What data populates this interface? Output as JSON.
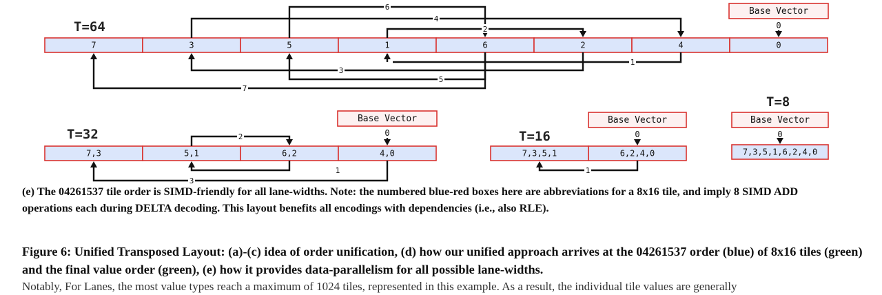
{
  "diagram": {
    "t64": {
      "label": "T=64",
      "cells": [
        "7",
        "3",
        "5",
        "1",
        "6",
        "2",
        "4",
        "0"
      ],
      "base_vector": "Base Vector",
      "zero": "0",
      "top_arrows": [
        {
          "label": "6",
          "from": 2,
          "to": 4
        },
        {
          "label": "4",
          "from": 1,
          "to": 6
        },
        {
          "label": "2",
          "from": 3,
          "to": 5
        }
      ],
      "bottom_arrows": [
        {
          "label": "1",
          "from": 6,
          "to": 3
        },
        {
          "label": "3",
          "from": 5,
          "to": 1
        },
        {
          "label": "5",
          "from": 4,
          "to": 2
        },
        {
          "label": "7",
          "from": 4,
          "to": 0
        }
      ]
    },
    "t32": {
      "label": "T=32",
      "cells": [
        "7,3",
        "5,1",
        "6,2",
        "4,0"
      ],
      "base_vector": "Base Vector",
      "zero": "0",
      "top_arrows": [
        {
          "label": "2",
          "from": 1,
          "to": 2
        }
      ],
      "bottom_arrows": [
        {
          "label": "1",
          "from": 2,
          "to": 1
        },
        {
          "label": "3",
          "from": 3,
          "to": 0
        }
      ]
    },
    "t16": {
      "label": "T=16",
      "cells": [
        "7,3,5,1",
        "6,2,4,0"
      ],
      "base_vector": "Base Vector",
      "zero": "0",
      "bottom_arrows": [
        {
          "label": "1",
          "from": 1,
          "to": 0
        }
      ]
    },
    "t8": {
      "label": "T=8",
      "cells": [
        "7,3,5,1,6,2,4,0"
      ],
      "base_vector": "Base Vector",
      "zero": "0"
    }
  },
  "caption_e": "(e) The 04261537 tile order is SIMD-friendly for all lane-widths. Note: the numbered blue-red boxes here are abbreviations for a 8x16 tile, and imply 8 SIMD ADD operations each during DELTA decoding. This layout benefits all encodings with dependencies (i.e., also RLE).",
  "figure_caption": "Figure 6: Unified Transposed Layout: (a)-(c) idea of order unification, (d) how our unified approach arrives at the 04261537 order (blue) of 8x16 tiles (green) and the final value order (green), (e) how it provides data-parallelism for all possible lane-widths.",
  "caption_truncated": "Notably, For Lanes, the most value types reach a maximum of 1024 tiles, represented in this example. As a result, the individual tile values are generally"
}
